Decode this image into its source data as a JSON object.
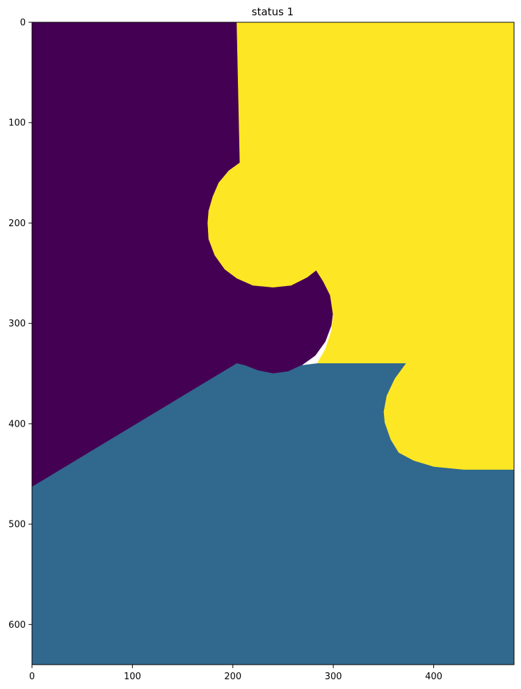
{
  "chart_data": {
    "type": "heatmap",
    "title": "status 1",
    "xlabel": "",
    "ylabel": "",
    "xlim": [
      0,
      480
    ],
    "ylim": [
      640,
      0
    ],
    "x_ticks": [
      0,
      100,
      200,
      300,
      400
    ],
    "y_ticks": [
      0,
      100,
      200,
      300,
      400,
      500,
      600
    ],
    "colormap": "viridis",
    "grid": false,
    "legend": "none",
    "regions": [
      {
        "id": "region-dark-purple",
        "value": 0,
        "color": "#440154",
        "description": "",
        "boundary": [
          [
            0,
            0
          ],
          [
            204,
            0
          ],
          [
            207,
            140
          ],
          [
            196,
            148
          ],
          [
            186,
            160
          ],
          [
            180,
            174
          ],
          [
            176,
            188
          ],
          [
            175,
            200
          ],
          [
            176,
            216
          ],
          [
            182,
            232
          ],
          [
            192,
            246
          ],
          [
            204,
            255
          ],
          [
            220,
            262
          ],
          [
            240,
            264
          ],
          [
            258,
            262
          ],
          [
            274,
            254
          ],
          [
            283,
            247
          ],
          [
            290,
            256
          ],
          [
            297,
            268
          ],
          [
            300,
            286
          ],
          [
            298,
            302
          ],
          [
            292,
            318
          ],
          [
            282,
            332
          ],
          [
            268,
            342
          ],
          [
            255,
            348
          ],
          [
            240,
            350
          ],
          [
            225,
            347
          ],
          [
            212,
            342
          ],
          [
            204,
            340
          ],
          [
            0,
            463
          ]
        ]
      },
      {
        "id": "region-yellow",
        "value": 2,
        "color": "#fde725",
        "description": "",
        "boundary": [
          [
            204,
            0
          ],
          [
            480,
            0
          ],
          [
            480,
            446
          ],
          [
            430,
            446
          ],
          [
            400,
            443
          ],
          [
            380,
            437
          ],
          [
            365,
            429
          ],
          [
            357,
            416
          ],
          [
            351,
            399
          ],
          [
            350,
            388
          ],
          [
            353,
            372
          ],
          [
            361,
            355
          ],
          [
            372,
            340
          ],
          [
            284,
            340
          ],
          [
            292,
            326
          ],
          [
            298,
            308
          ],
          [
            300,
            292
          ],
          [
            297,
            272
          ],
          [
            290,
            258
          ],
          [
            283,
            247
          ],
          [
            274,
            254
          ],
          [
            258,
            262
          ],
          [
            240,
            264
          ],
          [
            220,
            262
          ],
          [
            204,
            255
          ],
          [
            192,
            246
          ],
          [
            182,
            232
          ],
          [
            176,
            216
          ],
          [
            175,
            200
          ],
          [
            176,
            188
          ],
          [
            180,
            174
          ],
          [
            186,
            160
          ],
          [
            196,
            148
          ],
          [
            207,
            140
          ]
        ]
      },
      {
        "id": "region-teal",
        "value": 1,
        "color": "#31688e",
        "description": "",
        "boundary": [
          [
            0,
            463
          ],
          [
            204,
            340
          ],
          [
            212,
            342
          ],
          [
            225,
            347
          ],
          [
            240,
            350
          ],
          [
            255,
            348
          ],
          [
            268,
            342
          ],
          [
            284,
            340
          ],
          [
            372,
            340
          ],
          [
            361,
            355
          ],
          [
            353,
            372
          ],
          [
            350,
            388
          ],
          [
            351,
            399
          ],
          [
            357,
            416
          ],
          [
            365,
            429
          ],
          [
            380,
            437
          ],
          [
            400,
            443
          ],
          [
            430,
            446
          ],
          [
            480,
            446
          ],
          [
            480,
            640
          ],
          [
            0,
            640
          ]
        ]
      }
    ]
  }
}
